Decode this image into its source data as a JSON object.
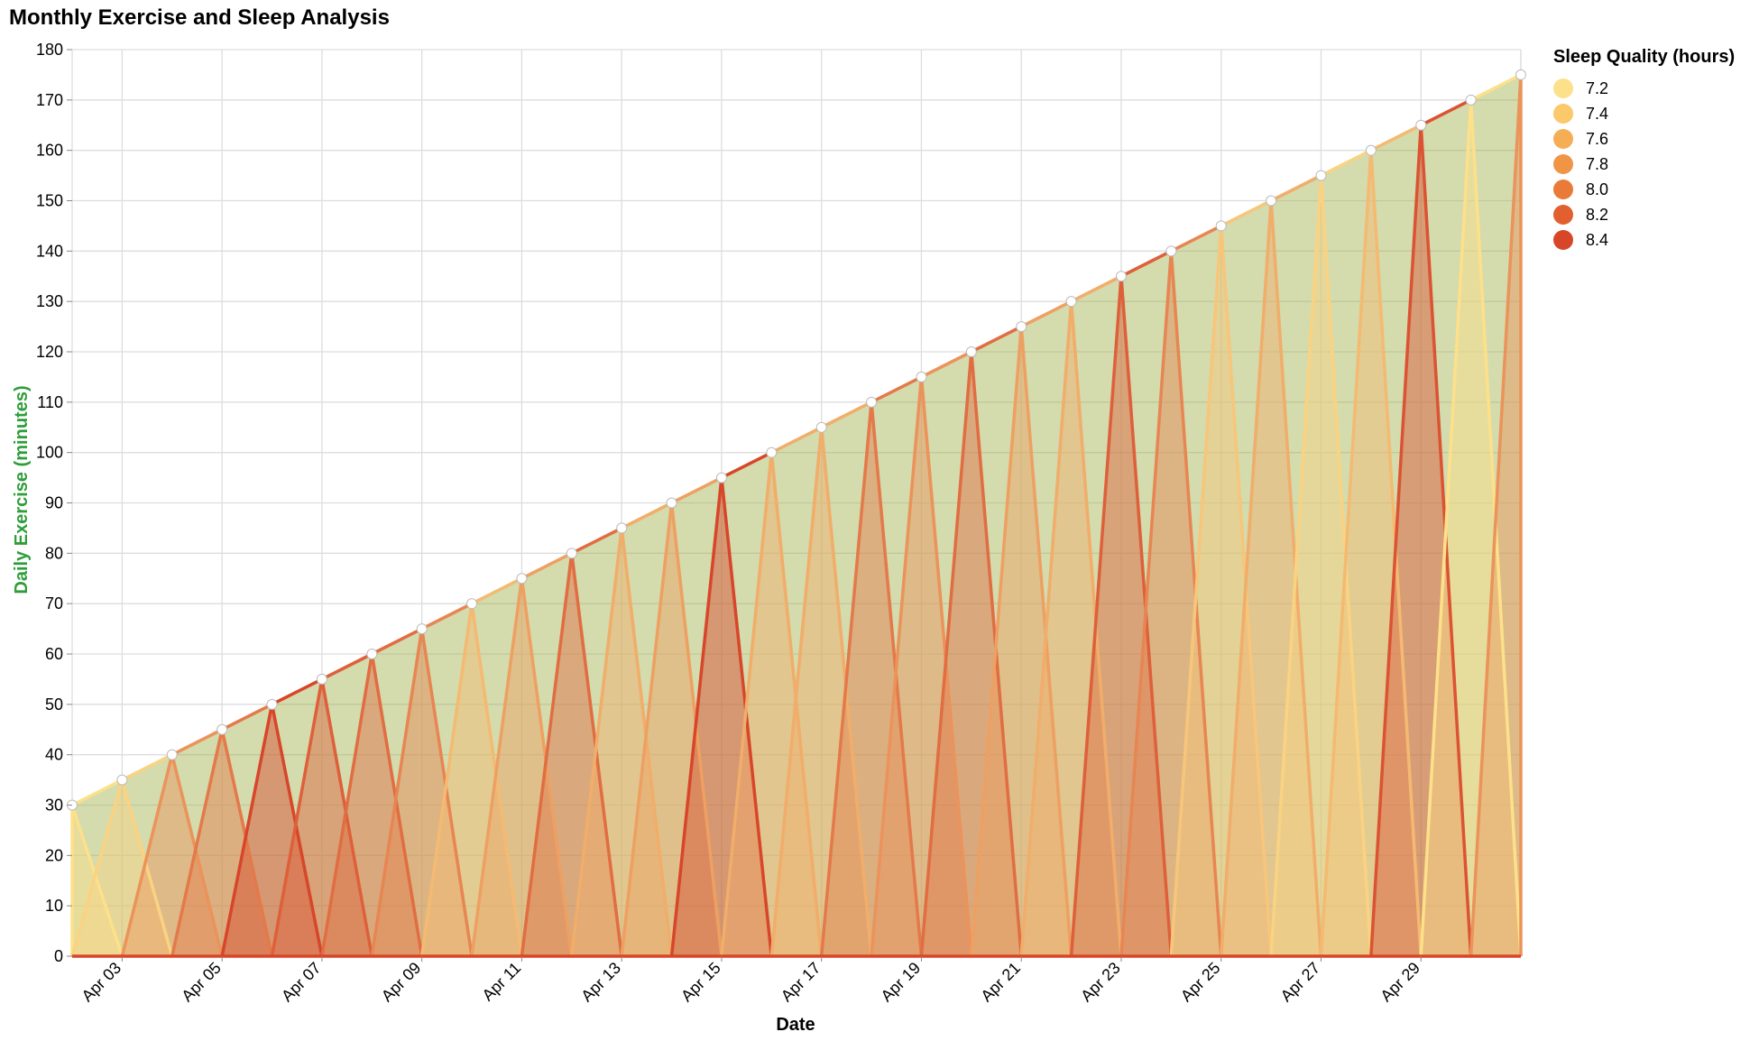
{
  "title": "Monthly Exercise and Sleep Analysis",
  "legend": {
    "title": "Sleep Quality (hours)",
    "items": [
      {
        "label": "7.2",
        "color": "#fde08a"
      },
      {
        "label": "7.4",
        "color": "#fbc86a"
      },
      {
        "label": "7.6",
        "color": "#f6ae56"
      },
      {
        "label": "7.8",
        "color": "#f09446"
      },
      {
        "label": "8.0",
        "color": "#ea7a38"
      },
      {
        "label": "8.2",
        "color": "#e2602f"
      },
      {
        "label": "8.4",
        "color": "#d8462a"
      }
    ]
  },
  "chart_data": {
    "type": "area",
    "title": "Monthly Exercise and Sleep Analysis",
    "xlabel": "Date",
    "ylabel": "Daily Exercise (minutes)",
    "ylim": [
      0,
      180
    ],
    "y_ticks": [
      0,
      10,
      20,
      30,
      40,
      50,
      60,
      70,
      80,
      90,
      100,
      110,
      120,
      130,
      140,
      150,
      160,
      170,
      180
    ],
    "x_tick_labels": [
      "Apr 03",
      "Apr 05",
      "Apr 07",
      "Apr 09",
      "Apr 11",
      "Apr 13",
      "Apr 15",
      "Apr 17",
      "Apr 19",
      "Apr 21",
      "Apr 23",
      "Apr 25",
      "Apr 27",
      "Apr 29"
    ],
    "grid": true,
    "legend_position": "right",
    "dates": [
      "2024-04-01",
      "2024-04-02",
      "2024-04-03",
      "2024-04-04",
      "2024-04-05",
      "2024-04-06",
      "2024-04-07",
      "2024-04-08",
      "2024-04-09",
      "2024-04-10",
      "2024-04-11",
      "2024-04-12",
      "2024-04-13",
      "2024-04-14",
      "2024-04-15",
      "2024-04-16",
      "2024-04-17",
      "2024-04-18",
      "2024-04-19",
      "2024-04-20",
      "2024-04-21",
      "2024-04-22",
      "2024-04-23",
      "2024-04-24",
      "2024-04-25",
      "2024-04-26",
      "2024-04-27",
      "2024-04-28",
      "2024-04-29",
      "2024-04-30"
    ],
    "exercise_minutes": [
      30,
      35,
      40,
      45,
      50,
      55,
      60,
      65,
      70,
      75,
      80,
      85,
      90,
      95,
      100,
      105,
      110,
      115,
      120,
      125,
      130,
      135,
      140,
      145,
      150,
      155,
      160,
      165,
      170,
      175
    ],
    "sleep_hours": [
      7.2,
      7.3,
      7.8,
      8.0,
      8.4,
      8.2,
      8.1,
      7.9,
      7.5,
      7.7,
      8.1,
      7.6,
      7.7,
      8.4,
      7.6,
      7.6,
      8.0,
      7.8,
      8.1,
      7.7,
      7.6,
      8.2,
      7.9,
      7.4,
      7.6,
      7.3,
      7.5,
      8.3,
      7.2,
      7.8
    ],
    "sleep_scale": {
      "min": 7.2,
      "max": 8.4,
      "color_low": "#fde08a",
      "color_high": "#d8462a"
    },
    "fill_opacity": 0.45,
    "area_base_color": "#9fb04a",
    "point_color": "#ffffff",
    "ylabel_color": "#2e9e3a"
  }
}
